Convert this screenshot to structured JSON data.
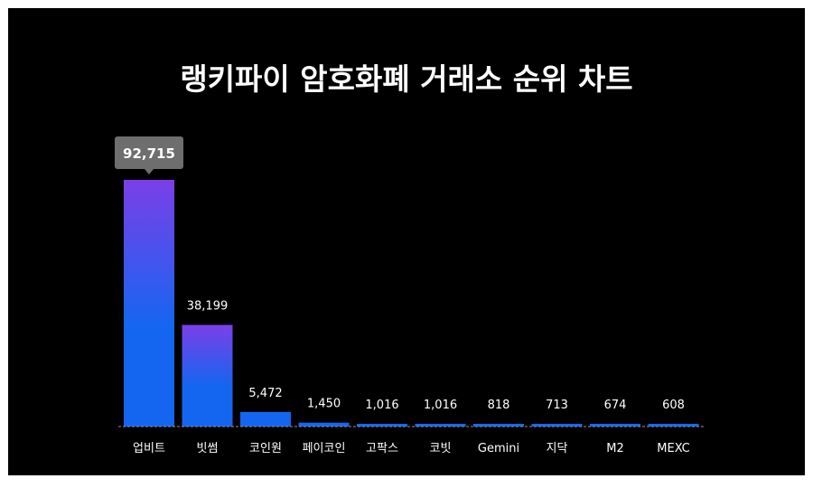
{
  "chart_data": {
    "type": "bar",
    "title": "랭키파이 암호화폐 거래소 순위 차트",
    "categories": [
      "업비트",
      "빗썸",
      "코인원",
      "페이코인",
      "고팍스",
      "코빗",
      "Gemini",
      "지닥",
      "M2",
      "MEXC"
    ],
    "values": [
      92715,
      38199,
      5472,
      1450,
      1016,
      1016,
      818,
      713,
      674,
      608
    ],
    "value_labels": [
      "92,715",
      "38,199",
      "5,472",
      "1,450",
      "1,016",
      "1,016",
      "818",
      "713",
      "674",
      "608"
    ],
    "highlighted_index": 0,
    "ylim": [
      0,
      92715
    ],
    "grid": false,
    "legend": "none",
    "xlabel": "",
    "ylabel": ""
  },
  "colors": {
    "background": "#000000",
    "bar_top": "#7b3fe8",
    "bar_bottom": "#1466f0",
    "tooltip_bg": "#6e6e6e",
    "text": "#ffffff",
    "baseline": "#8a8fa8"
  }
}
